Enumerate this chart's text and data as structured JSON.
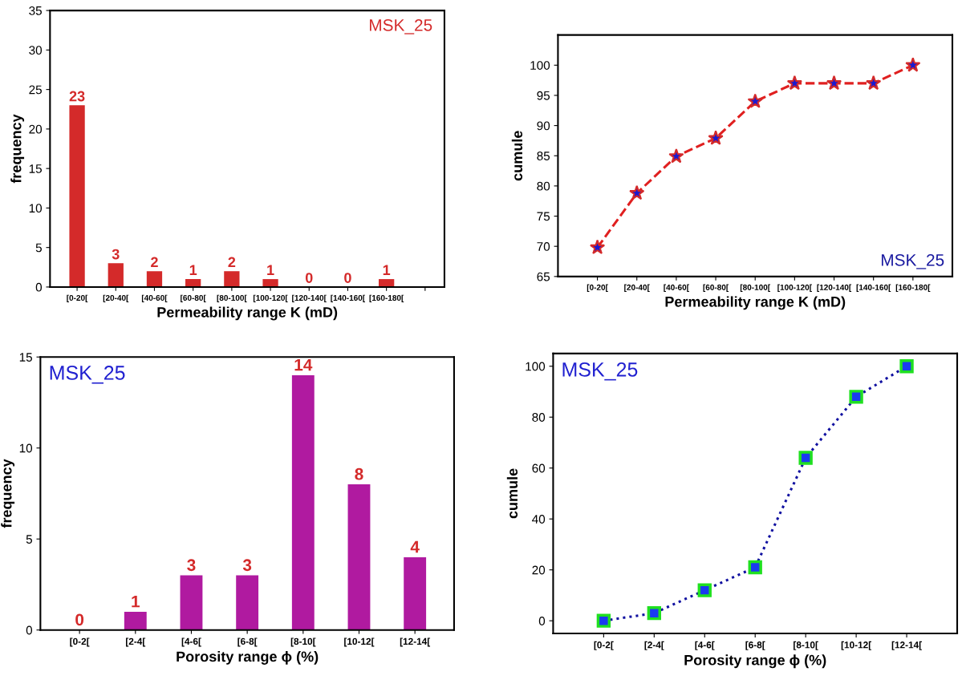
{
  "chart_data": [
    {
      "type": "bar",
      "xlabel": "Permeability range K (mD)",
      "ylabel": "frequency",
      "categories": [
        "[0-20[",
        "[20-40[",
        "[40-60[",
        "[60-80[",
        "[80-100[",
        "[100-120[",
        "[120-140[",
        "[140-160[",
        "[160-180[",
        null
      ],
      "values": [
        23,
        3,
        2,
        1,
        2,
        1,
        0,
        0,
        1,
        null
      ],
      "color": "#d42a2a",
      "data_labels": true,
      "ylim": [
        0,
        35
      ],
      "yticks": [
        0,
        5,
        10,
        15,
        20,
        25,
        30,
        35
      ],
      "annotations": [
        "MSK_25"
      ],
      "grid": false,
      "legend": false
    },
    {
      "type": "line",
      "xlabel": "Permeability range K (mD)",
      "ylabel": "cumule",
      "categories": [
        "[0-20[",
        "[20-40[",
        "[40-60[",
        "[60-80[",
        "[80-100[",
        "[100-120[",
        "[120-140[",
        "[140-160[",
        "[160-180["
      ],
      "series": [
        {
          "color": "#e02020",
          "values": [
            69.8,
            78.8,
            84.9,
            87.9,
            94,
            97,
            97,
            97,
            100
          ]
        }
      ],
      "marker": "star",
      "line_style": "dashed",
      "ylim": [
        65,
        105
      ],
      "yticks": [
        65,
        70,
        75,
        80,
        85,
        90,
        95,
        100
      ],
      "annotations": [
        "MSK_25"
      ],
      "grid": false,
      "legend": false
    },
    {
      "type": "bar",
      "xlabel": "Porosity range ϕ (%)",
      "ylabel": "frequency",
      "categories": [
        "[0-2[",
        "[2-4[",
        "[4-6[",
        "[6-8[",
        "[8-10[",
        "[10-12[",
        "[12-14["
      ],
      "values": [
        0,
        1,
        3,
        3,
        14,
        8,
        4
      ],
      "color": "#b01aa0",
      "data_labels": true,
      "ylim": [
        0,
        15
      ],
      "yticks": [
        0,
        5,
        10,
        15
      ],
      "annotations": [
        "MSK_25"
      ],
      "grid": false,
      "legend": false
    },
    {
      "type": "line",
      "xlabel": "Porosity range ϕ (%)",
      "ylabel": "cumule",
      "categories": [
        "[0-2[",
        "[2-4[",
        "[4-6[",
        "[6-8[",
        "[8-10[",
        "[10-12[",
        "[12-14["
      ],
      "series": [
        {
          "color": "#1010a0",
          "values": [
            0,
            3,
            12,
            21,
            64,
            88,
            100
          ]
        }
      ],
      "marker": "square",
      "line_style": "dotted",
      "ylim": [
        -5,
        105
      ],
      "yticks": [
        0,
        20,
        40,
        60,
        80,
        100
      ],
      "annotations": [
        "MSK_25"
      ],
      "grid": false,
      "legend": false
    }
  ]
}
